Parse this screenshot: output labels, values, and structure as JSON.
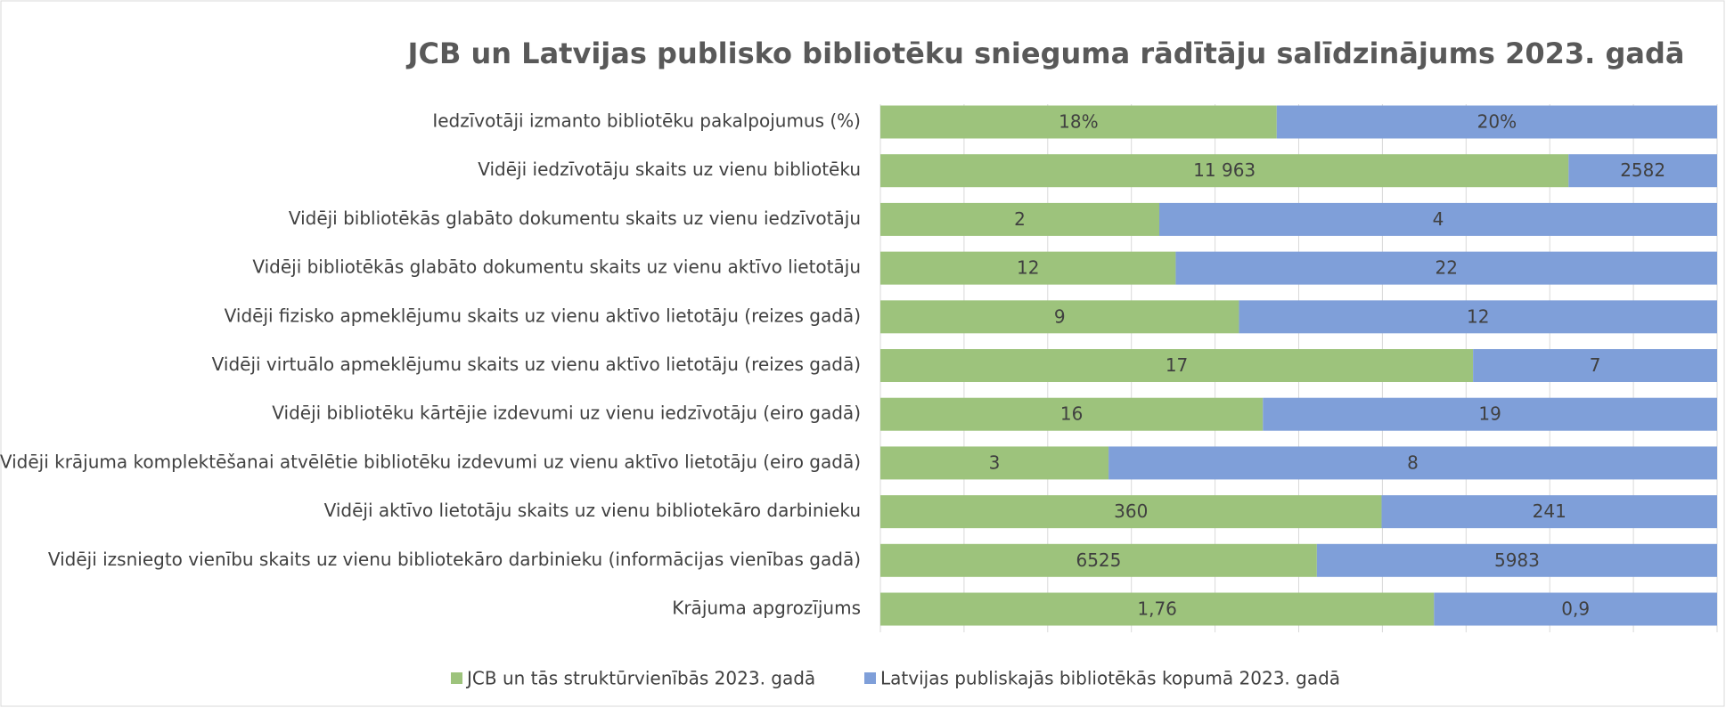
{
  "chart_data": {
    "type": "bar",
    "orientation": "horizontal",
    "stacked": "percent",
    "grid": true,
    "title": "JCB un Latvijas publisko bibliotēku snieguma rādītāju salīdzinājums 2023. gadā",
    "categories": [
      "Iedzīvotāji izmanto bibliotēku pakalpojumus (%)",
      "Vidēji iedzīvotāju skaits uz vienu bibliotēku",
      "Vidēji bibliotēkās glabāto dokumentu skaits uz vienu iedzīvotāju",
      "Vidēji bibliotēkās glabāto dokumentu skaits uz vienu aktīvo lietotāju",
      "Vidēji fizisko apmeklējumu skaits uz vienu aktīvo lietotāju (reizes gadā)",
      "Vidēji virtuālo apmeklējumu skaits uz vienu aktīvo lietotāju (reizes gadā)",
      "Vidēji bibliotēku kārtējie izdevumi uz vienu iedzīvotāju (eiro gadā)",
      "Vidēji krājuma komplektēšanai atvēlētie bibliotēku izdevumi uz vienu aktīvo lietotāju (eiro gadā)",
      "Vidēji aktīvo lietotāju skaits uz vienu bibliotekāro darbinieku",
      "Vidēji izsniegto vienību skaits uz vienu bibliotekāro darbinieku (informācijas vienības gadā)",
      "Krājuma apgrozījums"
    ],
    "series": [
      {
        "name": "JCB un tās struktūrvienībās 2023. gadā",
        "color": "#9dc37c",
        "values": [
          18,
          11963,
          2,
          12,
          9,
          17,
          16,
          3,
          360,
          6525,
          1.76
        ],
        "value_labels": [
          "18%",
          "11 963",
          "2",
          "12",
          "9",
          "17",
          "16",
          "3",
          "360",
          "6525",
          "1,76"
        ]
      },
      {
        "name": "Latvijas publiskajās bibliotēkās kopumā 2023. gadā",
        "color": "#7f9fd9",
        "values": [
          20,
          2582,
          4,
          22,
          12,
          7,
          19,
          8,
          241,
          5983,
          0.9
        ],
        "value_labels": [
          "20%",
          "2582",
          "4",
          "22",
          "12",
          "7",
          "19",
          "8",
          "241",
          "5983",
          "0,9"
        ]
      }
    ]
  }
}
